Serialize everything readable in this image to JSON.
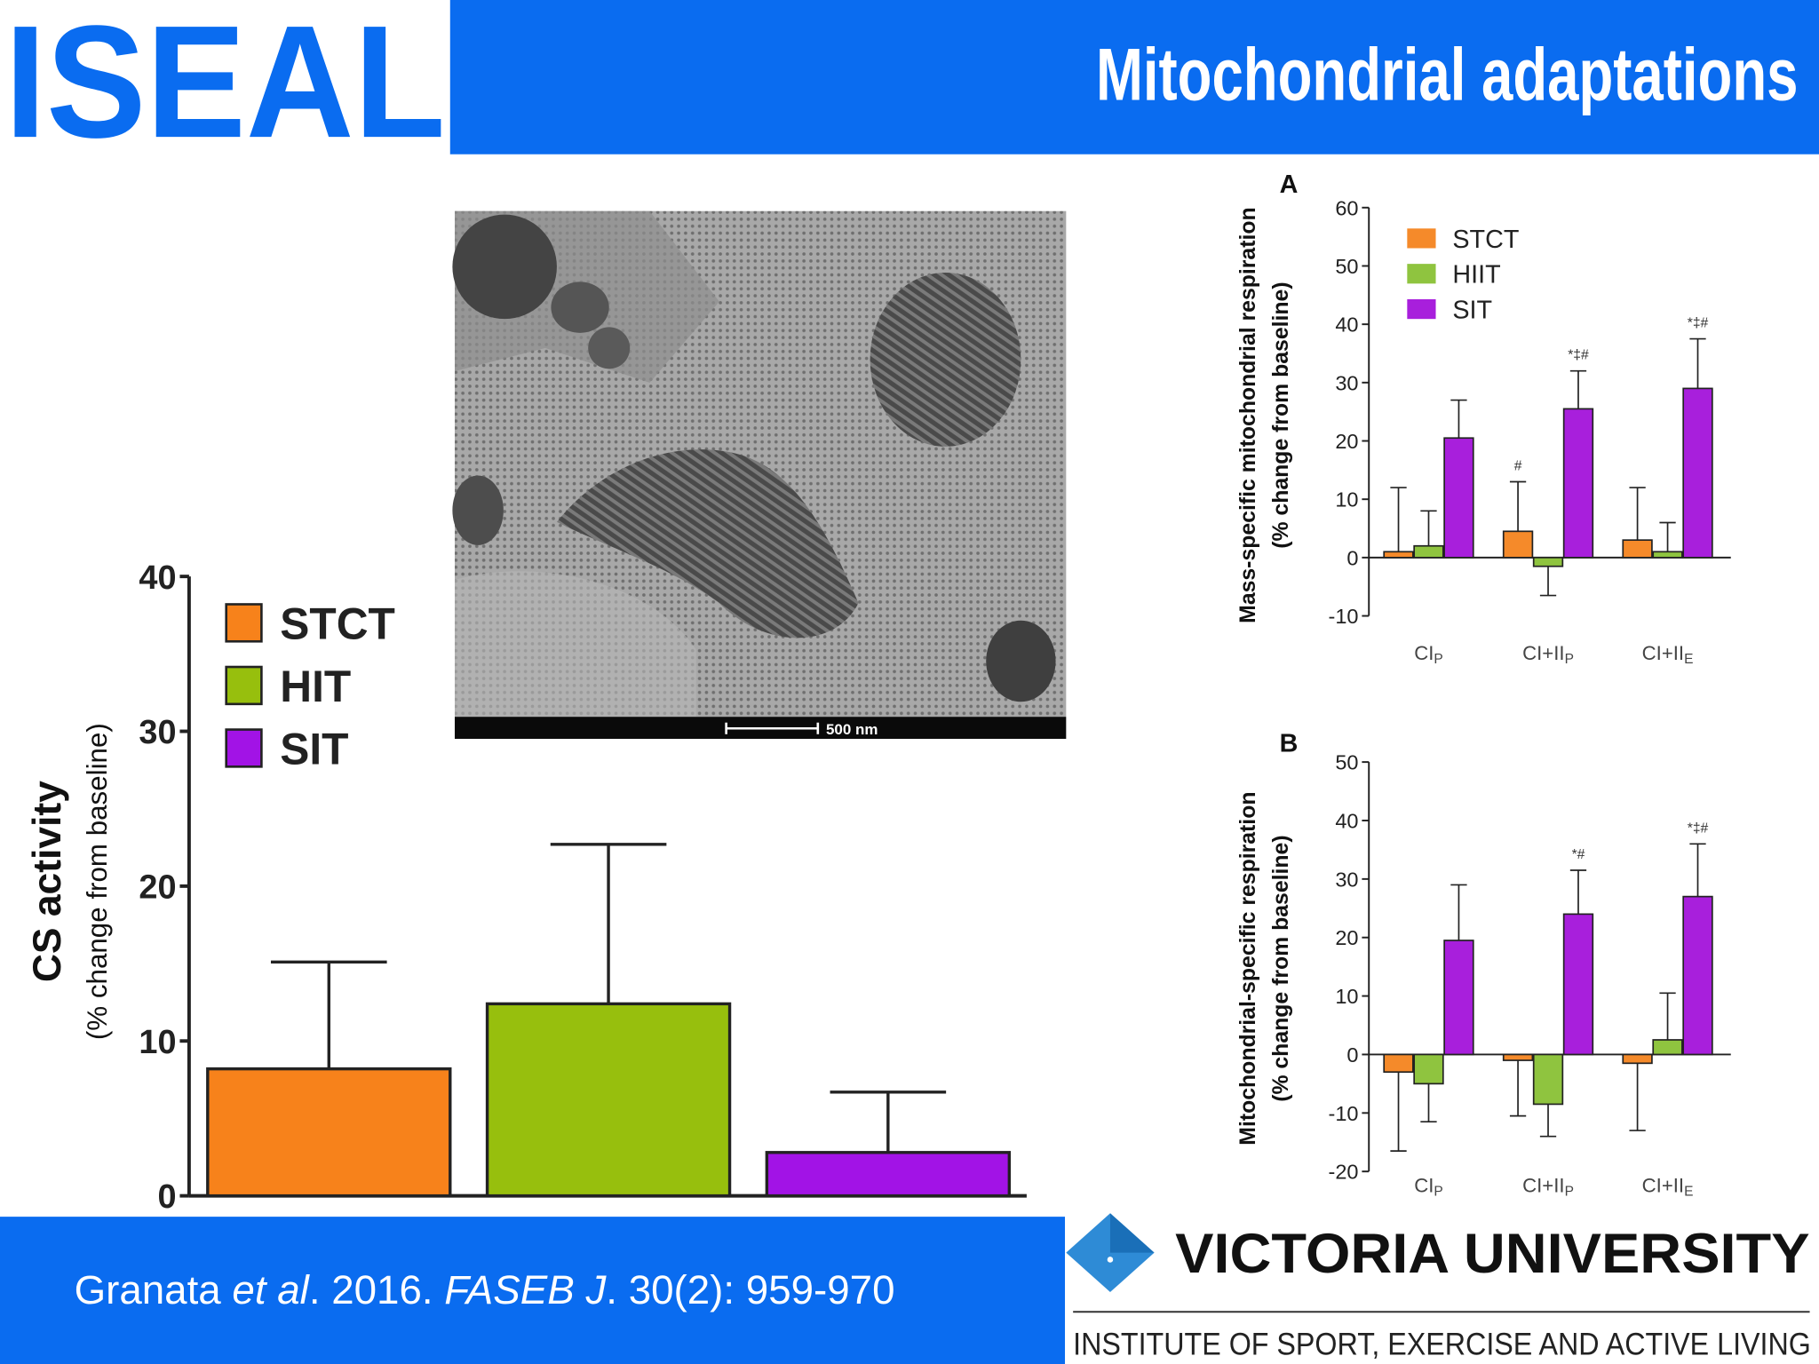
{
  "header": {
    "logo": "ISEAL",
    "title": "Mitochondrial adaptations"
  },
  "micrograph": {
    "scale_label": "500 nm"
  },
  "citation": {
    "authors": "Granata ",
    "et_al": "et al",
    "year": ". 2016. ",
    "journal": "FASEB J",
    "volume": ". 30(2): 959-970"
  },
  "institution": {
    "name": "VICTORIA UNIVERSITY",
    "subtitle": "INSTITUTE OF SPORT, EXERCISE AND ACTIVE LIVING"
  },
  "chart_data": [
    {
      "type": "bar",
      "ylabel": "CS activity",
      "ylabel_sub": "(% change from baseline)",
      "ylim": [
        0,
        40
      ],
      "yticks": [
        0,
        10,
        20,
        30,
        40
      ],
      "legend": "upper left",
      "series": [
        {
          "name": "STCT",
          "color": "#f7821b",
          "values": [
            8.2
          ],
          "errors": [
            6.9
          ]
        },
        {
          "name": "HIT",
          "color": "#97bf0d",
          "values": [
            12.4
          ],
          "errors": [
            10.3
          ]
        },
        {
          "name": "SIT",
          "color": "#a213e6",
          "values": [
            2.8
          ],
          "errors": [
            3.9
          ]
        }
      ]
    },
    {
      "type": "bar",
      "panel": "A",
      "ylabel": "Mass-specific mitochondrial respiration",
      "ylabel_sub": "(% change from baseline)",
      "categories": [
        "CI",
        "CI+II",
        "CI+II"
      ],
      "category_subscripts": [
        "P",
        "P",
        "E"
      ],
      "ylim": [
        -10,
        60
      ],
      "yticks": [
        -10,
        0,
        10,
        20,
        30,
        40,
        50,
        60
      ],
      "legend": "upper left",
      "series": [
        {
          "name": "STCT",
          "color": "#f58a2a",
          "values": [
            1,
            4.5,
            3
          ],
          "errors": [
            11,
            8.5,
            9
          ],
          "annotations": [
            null,
            "#",
            null
          ]
        },
        {
          "name": "HIIT",
          "color": "#8fc43f",
          "values": [
            2,
            -1.5,
            1
          ],
          "errors": [
            6,
            5,
            5
          ]
        },
        {
          "name": "SIT",
          "color": "#a81fdc",
          "values": [
            20.5,
            25.5,
            29
          ],
          "errors": [
            6.5,
            6.5,
            8.5
          ],
          "annotations": [
            null,
            "*‡#",
            "*‡#"
          ]
        }
      ]
    },
    {
      "type": "bar",
      "panel": "B",
      "ylabel": "Mitochondrial-specific respiration",
      "ylabel_sub": "(% change from baseline)",
      "categories": [
        "CI",
        "CI+II",
        "CI+II"
      ],
      "category_subscripts": [
        "P",
        "P",
        "E"
      ],
      "ylim": [
        -20,
        50
      ],
      "yticks": [
        -20,
        -10,
        0,
        10,
        20,
        30,
        40,
        50
      ],
      "series": [
        {
          "color": "#f58a2a",
          "values": [
            -3,
            -1,
            -1.5
          ],
          "errors": [
            13.5,
            9.5,
            11.5
          ]
        },
        {
          "color": "#8fc43f",
          "values": [
            -5,
            -8.5,
            2.5
          ],
          "errors": [
            6.5,
            5.5,
            8
          ]
        },
        {
          "color": "#a81fdc",
          "values": [
            19.5,
            24,
            27
          ],
          "errors": [
            9.5,
            7.5,
            9
          ],
          "annotations": [
            null,
            "*#",
            "*‡#"
          ]
        }
      ]
    }
  ]
}
